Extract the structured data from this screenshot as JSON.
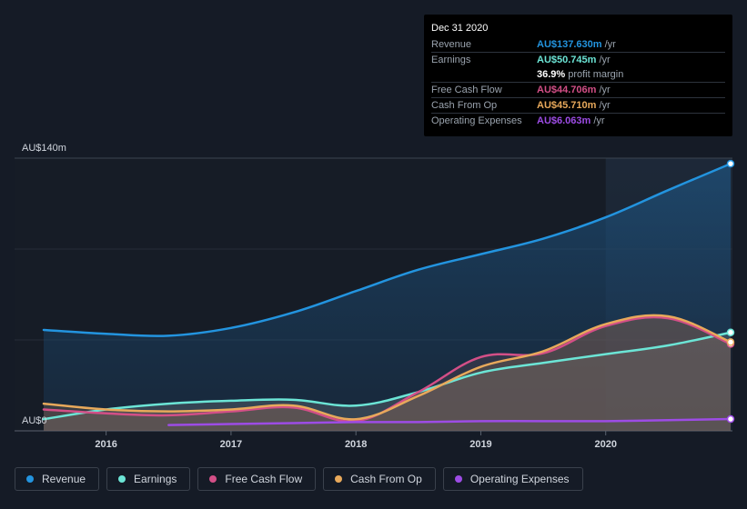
{
  "tooltip": {
    "date": "Dec 31 2020",
    "rows": [
      {
        "label": "Revenue",
        "value": "AU$137.630m",
        "unit": "/yr",
        "color": "#2394df"
      },
      {
        "label": "Earnings",
        "value": "AU$50.745m",
        "unit": "/yr",
        "color": "#6ce5d6"
      },
      {
        "margin_value": "36.9%",
        "margin_label": "profit margin"
      },
      {
        "label": "Free Cash Flow",
        "value": "AU$44.706m",
        "unit": "/yr",
        "color": "#d34f87"
      },
      {
        "label": "Cash From Op",
        "value": "AU$45.710m",
        "unit": "/yr",
        "color": "#e8a95b"
      },
      {
        "label": "Operating Expenses",
        "value": "AU$6.063m",
        "unit": "/yr",
        "color": "#9d4ce5"
      }
    ]
  },
  "legend": [
    {
      "label": "Revenue",
      "color": "#2394df"
    },
    {
      "label": "Earnings",
      "color": "#6ce5d6"
    },
    {
      "label": "Free Cash Flow",
      "color": "#d34f87"
    },
    {
      "label": "Cash From Op",
      "color": "#e8a95b"
    },
    {
      "label": "Operating Expenses",
      "color": "#9d4ce5"
    }
  ],
  "chart_data": {
    "type": "area",
    "y_top_label": "AU$140m",
    "y_bottom_label": "AU$0",
    "ylim": [
      0,
      140
    ],
    "xlim": [
      2015.5,
      2021.0
    ],
    "x_ticks": [
      "2016",
      "2017",
      "2018",
      "2019",
      "2020"
    ],
    "x_tick_values": [
      2016,
      2017,
      2018,
      2019,
      2020
    ],
    "highlight_from": 2020.0,
    "grid": true,
    "series": [
      {
        "name": "Revenue",
        "color": "#2394df",
        "x": [
          2015.5,
          2016.0,
          2016.5,
          2017.0,
          2017.5,
          2018.0,
          2018.5,
          2019.0,
          2019.5,
          2020.0,
          2020.5,
          2021.0
        ],
        "y": [
          52,
          50,
          49,
          53,
          61,
          72,
          83,
          91,
          99,
          110,
          124,
          137.6
        ]
      },
      {
        "name": "Earnings",
        "color": "#6ce5d6",
        "x": [
          2015.5,
          2016.0,
          2016.5,
          2017.0,
          2017.5,
          2018.0,
          2018.5,
          2019.0,
          2019.5,
          2020.0,
          2020.5,
          2021.0
        ],
        "y": [
          6,
          11,
          14,
          15.5,
          16,
          13,
          20,
          30,
          35,
          39.5,
          44,
          50.7
        ]
      },
      {
        "name": "Free Cash Flow",
        "color": "#d34f87",
        "x": [
          2015.5,
          2016.0,
          2016.5,
          2017.0,
          2017.5,
          2018.0,
          2018.5,
          2019.0,
          2019.5,
          2020.0,
          2020.5,
          2021.0
        ],
        "y": [
          11,
          9,
          8,
          10,
          12,
          5,
          20,
          38,
          40,
          54,
          58,
          44.7
        ]
      },
      {
        "name": "Cash From Op",
        "color": "#e8a95b",
        "x": [
          2015.5,
          2016.0,
          2016.5,
          2017.0,
          2017.5,
          2018.0,
          2018.5,
          2019.0,
          2019.5,
          2020.0,
          2020.5,
          2021.0
        ],
        "y": [
          14,
          11,
          10,
          11,
          13,
          6,
          18,
          33,
          41,
          55,
          59,
          45.7
        ]
      },
      {
        "name": "Operating Expenses",
        "color": "#9d4ce5",
        "x": [
          2016.5,
          2017.0,
          2017.5,
          2018.0,
          2018.5,
          2019.0,
          2019.5,
          2020.0,
          2020.5,
          2021.0
        ],
        "y": [
          3,
          3.5,
          4,
          4.5,
          4.5,
          5,
          5,
          5,
          5.5,
          6.06
        ]
      }
    ]
  }
}
